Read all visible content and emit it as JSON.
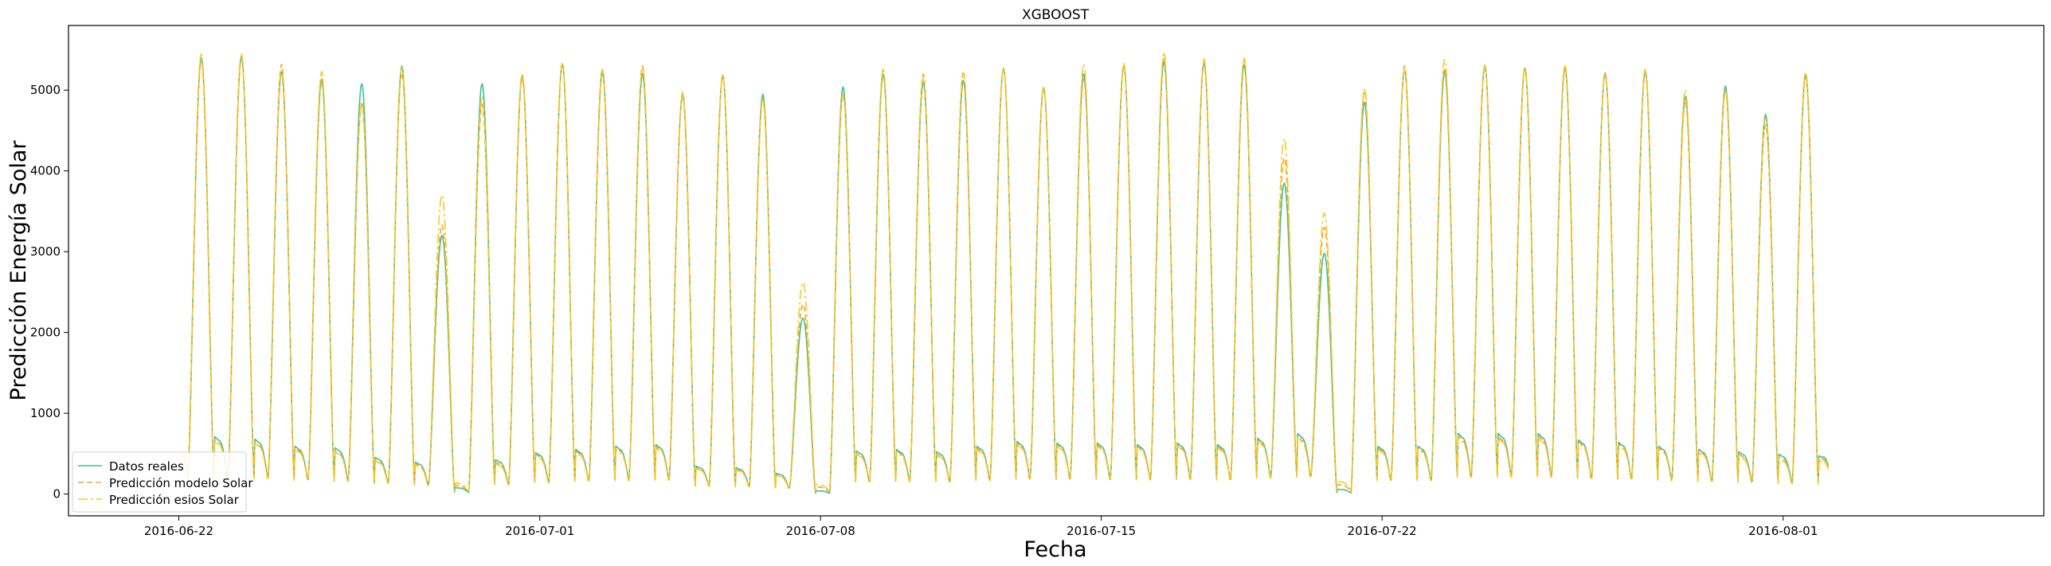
{
  "chart_data": {
    "type": "line",
    "title": "XGBOOST",
    "xlabel": "Fecha",
    "ylabel": "Predicción Energía Solar",
    "xlim": [
      "2016-06-19T06:00",
      "2016-08-07T12:00"
    ],
    "ylim": [
      -270,
      5800
    ],
    "x_ticks": [
      "2016-06-22",
      "2016-07-01",
      "2016-07-08",
      "2016-07-15",
      "2016-07-22",
      "2016-08-01"
    ],
    "y_ticks": [
      0,
      1000,
      2000,
      3000,
      4000,
      5000
    ],
    "grid": false,
    "legend_position": "lower-left",
    "x_start": "2016-06-22T03:00",
    "x_end": "2016-08-02T03:00",
    "sampling": "hourly",
    "daily_profile": {
      "sunrise_hour": 5.5,
      "sunset_hour": 21.0,
      "peak_hour": 13.5
    },
    "series": [
      {
        "name": "Datos reales",
        "color": "#3dbf9a",
        "dash": "",
        "daily_peak": [
          5400,
          5420,
          5220,
          5120,
          5080,
          5300,
          3200,
          5080,
          5180,
          5320,
          5250,
          5200,
          4950,
          5180,
          4950,
          2180,
          5040,
          5200,
          5100,
          5120,
          5270,
          5030,
          5200,
          5300,
          5350,
          5340,
          5310,
          3850,
          2980,
          4850,
          5250,
          5230,
          5300,
          5270,
          5270,
          5210,
          5230,
          4920,
          5050,
          4700,
          5200
        ],
        "night_value": [
          720,
          690,
          600,
          580,
          460,
          400,
          80,
          430,
          520,
          560,
          600,
          620,
          350,
          330,
          260,
          40,
          540,
          560,
          530,
          600,
          660,
          640,
          640,
          620,
          640,
          620,
          700,
          760,
          60,
          600,
          600,
          760,
          760,
          760,
          680,
          650,
          600,
          560,
          530,
          500,
          480
        ]
      },
      {
        "name": "Predicción modelo Solar",
        "color": "#f5a623",
        "dash": "7,4",
        "daily_peak": [
          5380,
          5400,
          5320,
          5160,
          4820,
          5210,
          3330,
          4820,
          5150,
          5340,
          5200,
          5300,
          4940,
          5190,
          4900,
          2350,
          4940,
          5260,
          5200,
          5230,
          5270,
          5030,
          5140,
          5310,
          5390,
          5340,
          5380,
          4160,
          3300,
          4990,
          5300,
          5280,
          5310,
          5280,
          5280,
          5210,
          5260,
          4860,
          4990,
          4570,
          5160
        ],
        "night_value": [
          680,
          650,
          580,
          540,
          430,
          380,
          110,
          400,
          500,
          540,
          580,
          600,
          330,
          310,
          240,
          90,
          510,
          540,
          500,
          580,
          640,
          620,
          620,
          600,
          620,
          600,
          680,
          720,
          120,
          580,
          580,
          730,
          720,
          730,
          660,
          630,
          580,
          540,
          500,
          470,
          450
        ]
      },
      {
        "name": "Predicción esios Solar",
        "color": "#f7c925",
        "dash": "12,4,3,4",
        "daily_peak": [
          5450,
          5450,
          5260,
          5230,
          4860,
          5280,
          3700,
          4920,
          5200,
          5330,
          5260,
          5280,
          4980,
          5180,
          4880,
          2620,
          4960,
          5250,
          5160,
          5210,
          5270,
          5050,
          5320,
          5330,
          5470,
          5390,
          5400,
          4400,
          3480,
          5020,
          5250,
          5380,
          5310,
          5260,
          5320,
          5190,
          5250,
          5000,
          5000,
          4660,
          5220
        ],
        "night_value": [
          660,
          640,
          560,
          530,
          420,
          360,
          140,
          380,
          480,
          520,
          560,
          580,
          320,
          300,
          230,
          120,
          500,
          520,
          490,
          560,
          620,
          600,
          600,
          580,
          600,
          580,
          660,
          700,
          160,
          560,
          560,
          700,
          700,
          700,
          640,
          610,
          560,
          520,
          480,
          440,
          420
        ]
      }
    ]
  }
}
